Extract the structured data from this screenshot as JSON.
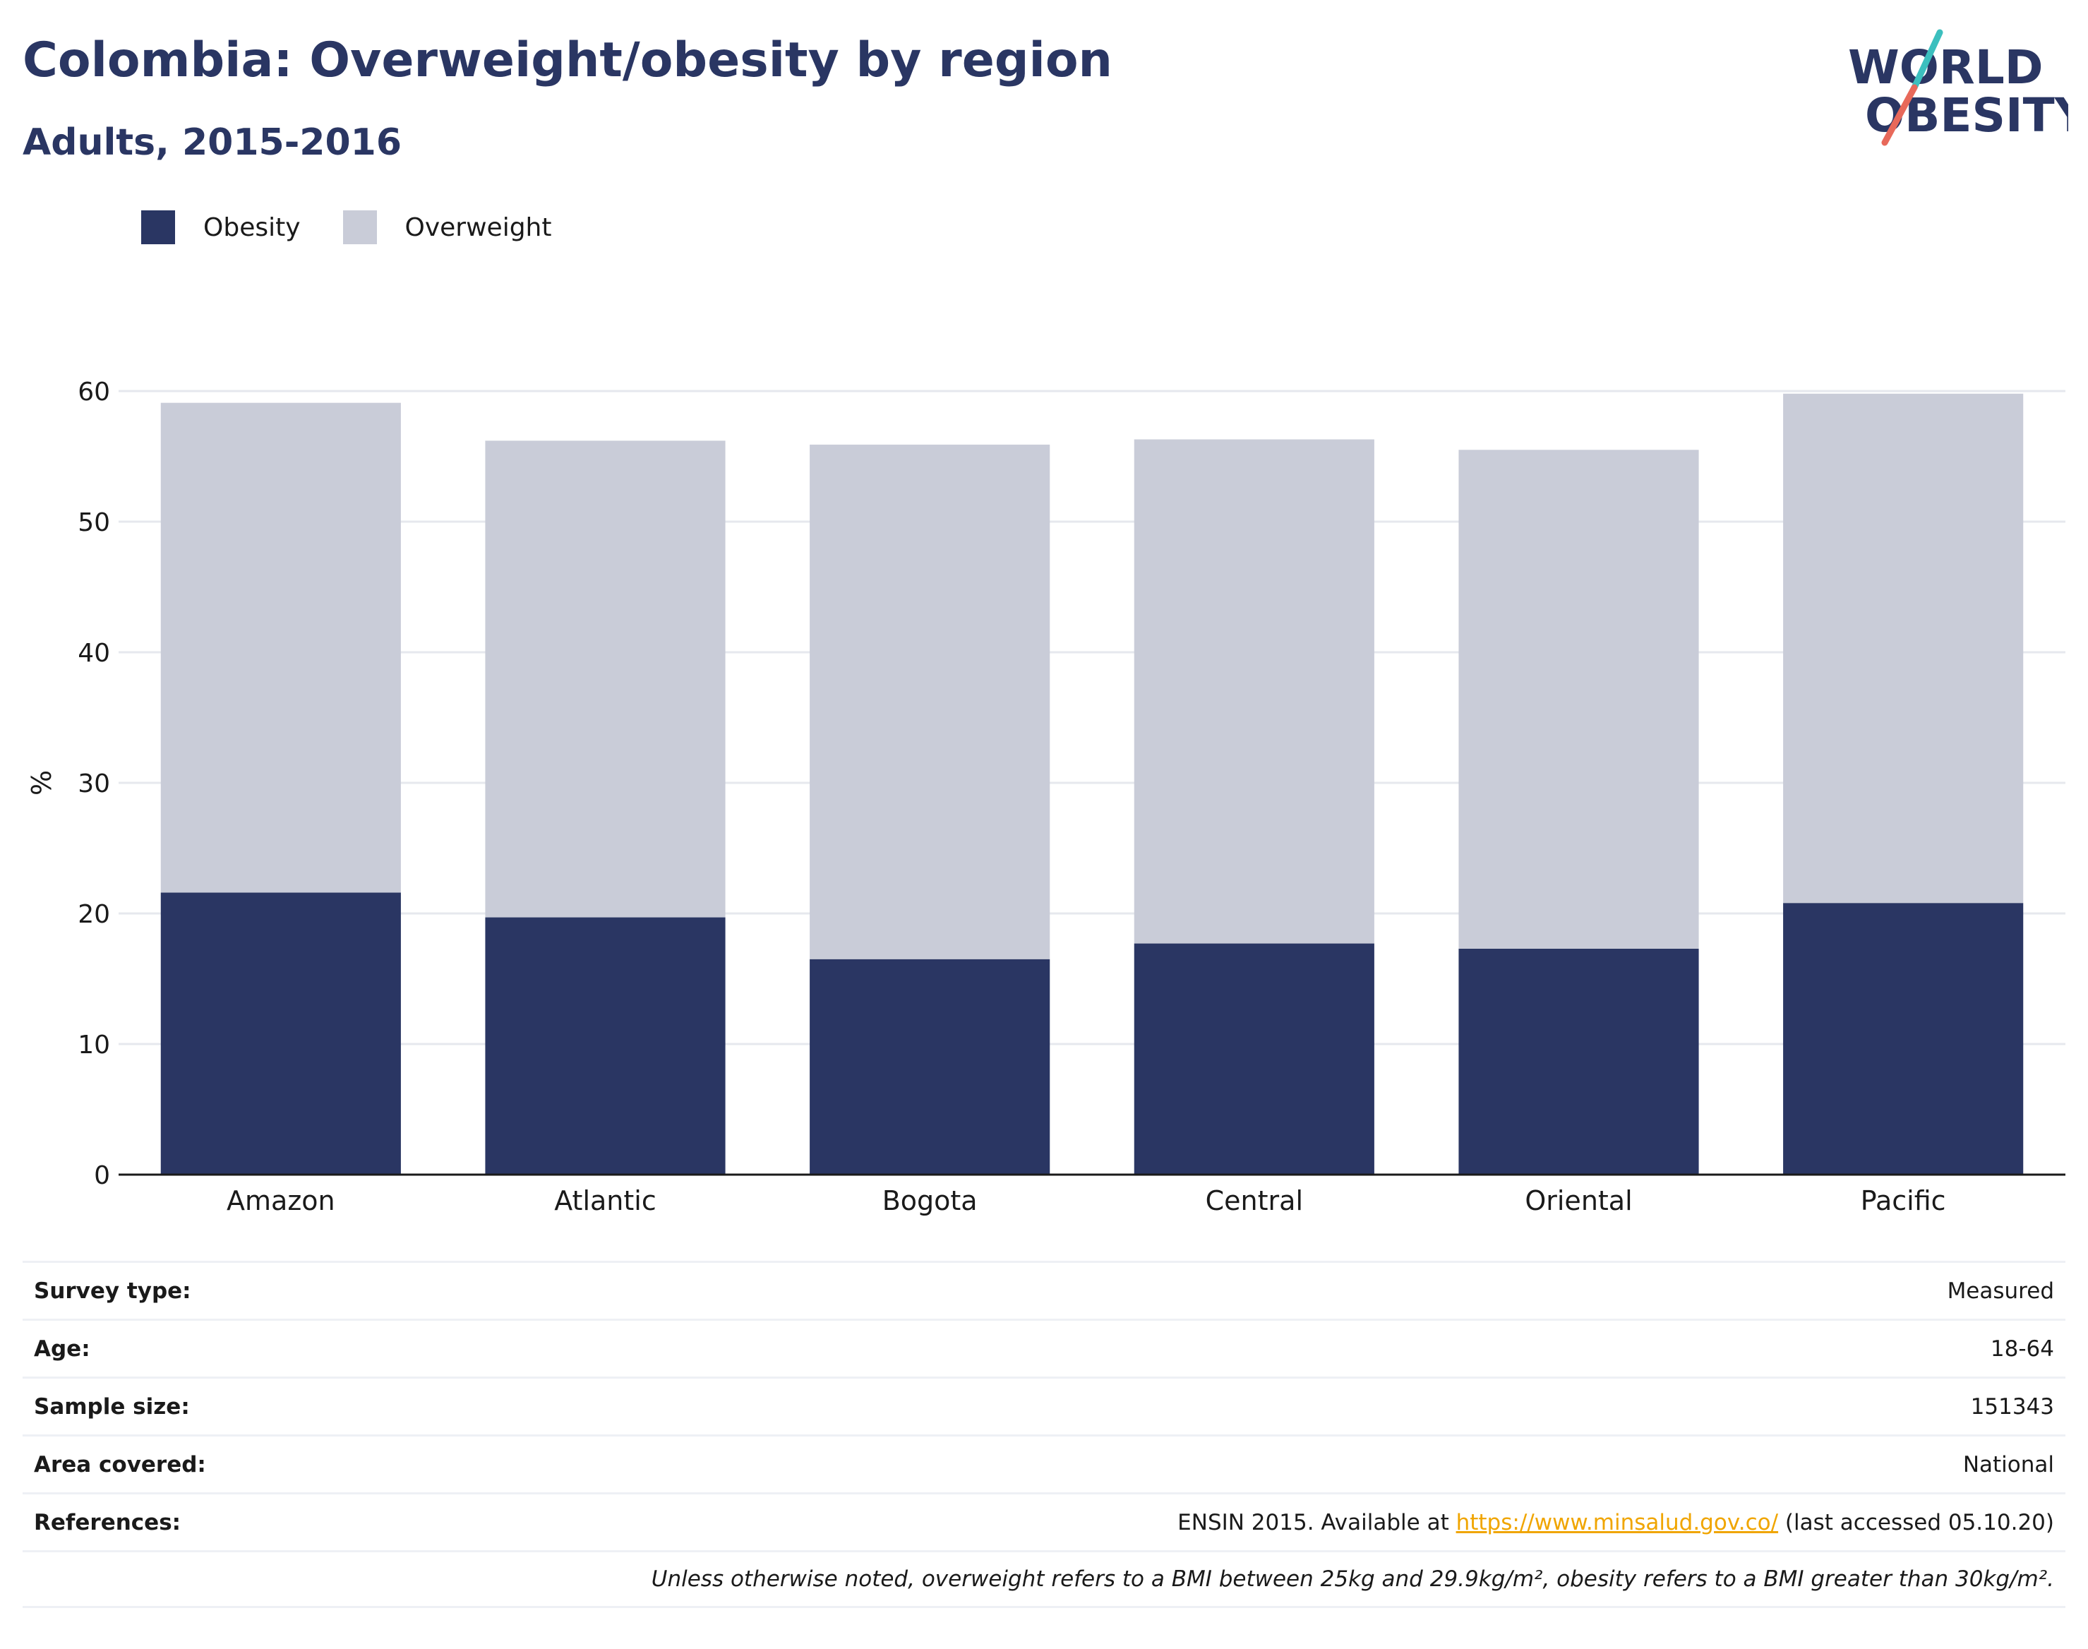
{
  "header": {
    "title": "Colombia: Overweight/obesity by region",
    "subtitle": "Adults, 2015-2016"
  },
  "logo": {
    "line1": "WORLD",
    "line2": "OBESITY",
    "colors": {
      "text": "#2a3663",
      "slash_top": "#3cbfbe",
      "slash_bottom": "#e8695a"
    }
  },
  "legend": [
    {
      "label": "Obesity",
      "color": "#2a3663"
    },
    {
      "label": "Overweight",
      "color": "#c9ccd8"
    }
  ],
  "chart_data": {
    "type": "bar",
    "stacked": true,
    "categories": [
      "Amazon",
      "Atlantic",
      "Bogota",
      "Central",
      "Oriental",
      "Pacific"
    ],
    "series": [
      {
        "name": "Obesity",
        "color": "#2a3663",
        "values": [
          21.6,
          19.7,
          16.5,
          17.7,
          17.3,
          20.8
        ]
      },
      {
        "name": "Overweight",
        "color": "#c9ccd8",
        "values": [
          37.5,
          36.5,
          39.4,
          38.6,
          38.2,
          39.0
        ]
      }
    ],
    "ylabel": "%",
    "ylim": [
      0,
      60
    ],
    "yticks": [
      0,
      10,
      20,
      30,
      40,
      50,
      60
    ],
    "grid": true,
    "legend_position": "top-left"
  },
  "info": {
    "survey_type": {
      "label": "Survey type:",
      "value": "Measured"
    },
    "age": {
      "label": "Age:",
      "value": "18-64"
    },
    "sample_size": {
      "label": "Sample size:",
      "value": "151343"
    },
    "area_covered": {
      "label": "Area covered:",
      "value": "National"
    },
    "references": {
      "label": "References:",
      "prefix": "ENSIN 2015. Available at ",
      "link": "https://www.minsalud.gov.co/",
      "suffix": " (last accessed 05.10.20)"
    },
    "footnote": "Unless otherwise noted, overweight refers to a BMI between 25kg and 29.9kg/m², obesity refers to a BMI greater than 30kg/m²."
  }
}
